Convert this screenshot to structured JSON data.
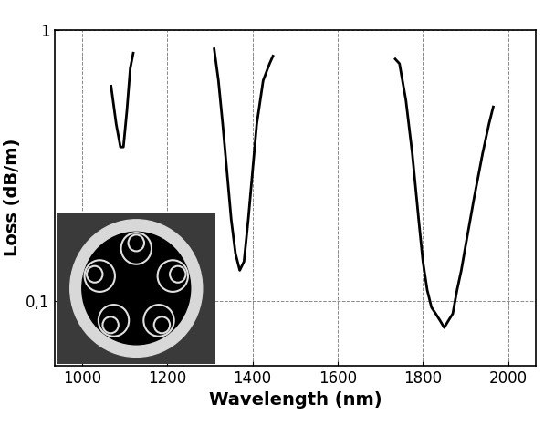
{
  "chart_data": {
    "type": "line",
    "x_label": "Wavelength (nm)",
    "y_label": "Loss (dB/m)",
    "x": [
      1068,
      1080,
      1090,
      1097,
      1105,
      1113,
      1120,
      1200,
      1310,
      1320,
      1330,
      1340,
      1350,
      1360,
      1370,
      1380,
      1390,
      1400,
      1410,
      1425,
      1440,
      1448,
      1600,
      1735,
      1745,
      1760,
      1775,
      1790,
      1800,
      1810,
      1820,
      1830,
      1840,
      1850,
      1860,
      1870,
      1880,
      1890,
      1900,
      1920,
      1940,
      1955,
      1965
    ],
    "series": [
      {
        "color": "#000000",
        "line_style": "solid",
        "values": [
          0.62,
          0.45,
          0.37,
          0.37,
          0.5,
          0.72,
          0.82,
          null,
          0.85,
          0.65,
          0.45,
          0.3,
          0.2,
          0.15,
          0.13,
          0.14,
          0.2,
          0.3,
          0.45,
          0.65,
          0.75,
          0.8,
          null,
          0.78,
          0.75,
          0.55,
          0.35,
          0.2,
          0.14,
          0.11,
          0.095,
          0.09,
          0.085,
          0.08,
          0.085,
          0.09,
          0.11,
          0.13,
          0.16,
          0.24,
          0.35,
          0.45,
          0.52
        ]
      }
    ],
    "xlim": [
      935,
      2065
    ],
    "ylim": [
      0.058,
      1
    ],
    "xticks": [
      1000,
      1200,
      1400,
      1600,
      1800,
      2000
    ],
    "yticks": [
      {
        "value": 0.1,
        "label": "0,1"
      },
      1
    ],
    "log": "y",
    "grid": true
  }
}
